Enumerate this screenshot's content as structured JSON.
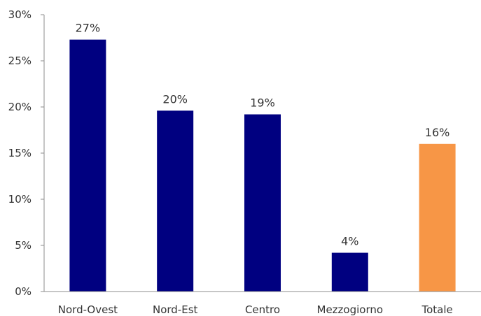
{
  "chart_data": {
    "type": "bar",
    "title": "",
    "xlabel": "",
    "ylabel": "",
    "categories": [
      "Nord-Ovest",
      "Nord-Est",
      "Centro",
      "Mezzogiorno",
      "Totale"
    ],
    "values": [
      27.3,
      19.6,
      19.2,
      4.2,
      16.0
    ],
    "data_labels": [
      "27%",
      "20%",
      "19%",
      "4%",
      "16%"
    ],
    "bar_colors": [
      "#000080",
      "#000080",
      "#000080",
      "#000080",
      "#F79646"
    ],
    "ylim": [
      0,
      30
    ],
    "yticks": [
      0,
      5,
      10,
      15,
      20,
      25,
      30
    ],
    "ytick_labels": [
      "0%",
      "5%",
      "10%",
      "15%",
      "20%",
      "25%",
      "30%"
    ],
    "grid": false,
    "legend": "none"
  }
}
